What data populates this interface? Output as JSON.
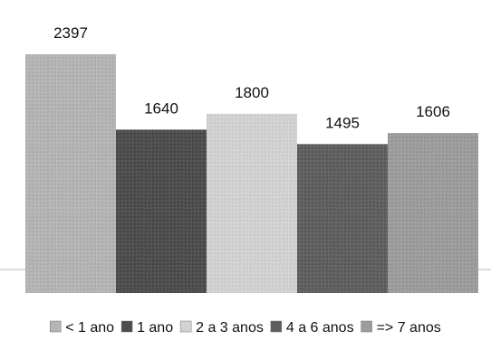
{
  "chart_data": {
    "type": "bar",
    "categories": [
      "< 1 ano",
      "1 ano",
      "2 a 3 anos",
      "4 a 6 anos",
      "=> 7 anos"
    ],
    "values": [
      2397,
      1640,
      1800,
      1495,
      1606
    ],
    "title": "",
    "xlabel": "",
    "ylabel": "",
    "ylim": [
      0,
      2600
    ],
    "grid": false,
    "legend_position": "bottom",
    "colors": [
      "#b4b4b4",
      "#4c4c4c",
      "#d2d2d2",
      "#5e5e5e",
      "#9c9c9c"
    ]
  }
}
